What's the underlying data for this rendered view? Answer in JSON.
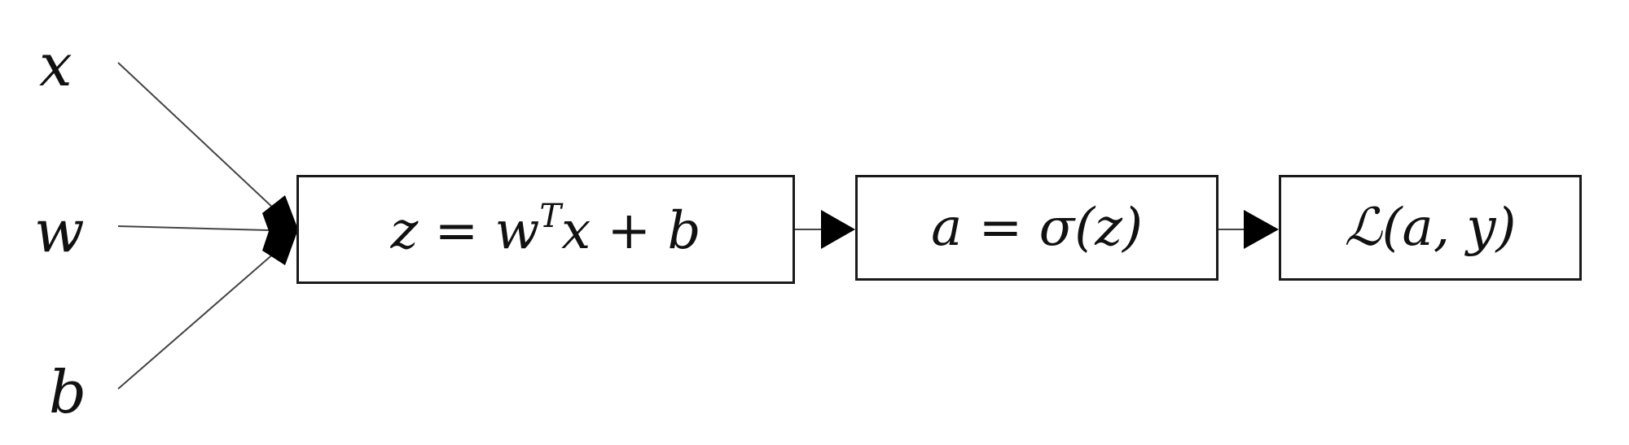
{
  "inputs": {
    "x": "x",
    "w": "w",
    "b": "b"
  },
  "nodes": {
    "linear": {
      "lhs": "z",
      "eq": "=",
      "w": "w",
      "sup": "T",
      "x": "x",
      "plus": "+",
      "b": "b"
    },
    "activation": {
      "text": "a = σ(z)"
    },
    "loss": {
      "text": "ℒ(a, y)"
    }
  },
  "colors": {
    "stroke": "#1a1a1a",
    "text": "#111111",
    "background": "#ffffff"
  }
}
